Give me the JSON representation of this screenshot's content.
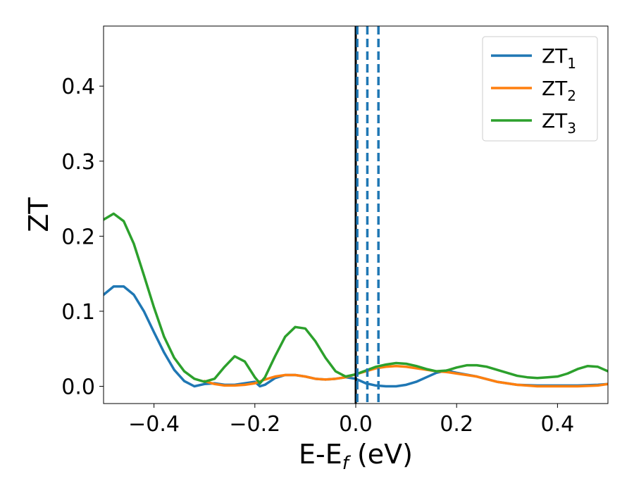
{
  "chart_data": {
    "type": "line",
    "xlabel": "E-E",
    "xlabel_sub": "f",
    "xlabel_unit": " (eV)",
    "ylabel": "ZT",
    "xlim": [
      -0.5,
      0.5
    ],
    "ylim": [
      -0.023,
      0.48
    ],
    "x_ticks": [
      -0.4,
      -0.2,
      0.0,
      0.2,
      0.4
    ],
    "x_tick_labels": [
      "−0.4",
      "−0.2",
      "0.0",
      "0.2",
      "0.4"
    ],
    "y_ticks": [
      0.0,
      0.1,
      0.2,
      0.3,
      0.4
    ],
    "y_tick_labels": [
      "0.0",
      "0.1",
      "0.2",
      "0.3",
      "0.4"
    ],
    "grid": false,
    "legend_position": "top-right",
    "vertical_lines": [
      {
        "x": 0.0,
        "color": "#000000",
        "style": "solid"
      },
      {
        "x": 0.003,
        "color": "#1f77b4",
        "style": "dashed"
      },
      {
        "x": 0.023,
        "color": "#1f77b4",
        "style": "dashed"
      },
      {
        "x": 0.045,
        "color": "#1f77b4",
        "style": "dashed"
      }
    ],
    "series": [
      {
        "name": "ZT",
        "name_sub": "1",
        "color": "#1f77b4",
        "points": [
          [
            -0.5,
            0.122
          ],
          [
            -0.48,
            0.133
          ],
          [
            -0.46,
            0.133
          ],
          [
            -0.44,
            0.122
          ],
          [
            -0.42,
            0.1
          ],
          [
            -0.4,
            0.072
          ],
          [
            -0.38,
            0.045
          ],
          [
            -0.36,
            0.022
          ],
          [
            -0.34,
            0.007
          ],
          [
            -0.32,
            0.0
          ],
          [
            -0.3,
            0.003
          ],
          [
            -0.28,
            0.004
          ],
          [
            -0.26,
            0.002
          ],
          [
            -0.24,
            0.002
          ],
          [
            -0.22,
            0.004
          ],
          [
            -0.2,
            0.006
          ],
          [
            -0.19,
            0.0
          ],
          [
            -0.18,
            0.002
          ],
          [
            -0.16,
            0.011
          ],
          [
            -0.14,
            0.015
          ],
          [
            -0.12,
            0.015
          ],
          [
            -0.1,
            0.013
          ],
          [
            -0.08,
            0.01
          ],
          [
            -0.06,
            0.009
          ],
          [
            -0.04,
            0.01
          ],
          [
            -0.02,
            0.012
          ],
          [
            0.0,
            0.01
          ],
          [
            0.02,
            0.004
          ],
          [
            0.04,
            0.001
          ],
          [
            0.06,
            0.0
          ],
          [
            0.08,
            0.0
          ],
          [
            0.1,
            0.002
          ],
          [
            0.12,
            0.006
          ],
          [
            0.14,
            0.012
          ],
          [
            0.16,
            0.018
          ],
          [
            0.18,
            0.021
          ],
          [
            0.2,
            0.018
          ],
          [
            0.24,
            0.013
          ],
          [
            0.28,
            0.006
          ],
          [
            0.32,
            0.002
          ],
          [
            0.36,
            0.001
          ],
          [
            0.4,
            0.001
          ],
          [
            0.44,
            0.001
          ],
          [
            0.48,
            0.002
          ],
          [
            0.5,
            0.003
          ]
        ]
      },
      {
        "name": "ZT",
        "name_sub": "2",
        "color": "#ff7f0e",
        "points": [
          [
            -0.3,
            0.007
          ],
          [
            -0.28,
            0.003
          ],
          [
            -0.26,
            0.001
          ],
          [
            -0.24,
            0.001
          ],
          [
            -0.22,
            0.002
          ],
          [
            -0.2,
            0.004
          ],
          [
            -0.18,
            0.009
          ],
          [
            -0.16,
            0.013
          ],
          [
            -0.14,
            0.015
          ],
          [
            -0.12,
            0.015
          ],
          [
            -0.1,
            0.013
          ],
          [
            -0.08,
            0.01
          ],
          [
            -0.06,
            0.009
          ],
          [
            -0.04,
            0.01
          ],
          [
            -0.02,
            0.012
          ],
          [
            0.0,
            0.016
          ],
          [
            0.02,
            0.02
          ],
          [
            0.04,
            0.024
          ],
          [
            0.06,
            0.026
          ],
          [
            0.08,
            0.027
          ],
          [
            0.1,
            0.026
          ],
          [
            0.12,
            0.024
          ],
          [
            0.14,
            0.022
          ],
          [
            0.16,
            0.02
          ],
          [
            0.18,
            0.019
          ],
          [
            0.2,
            0.017
          ],
          [
            0.24,
            0.013
          ],
          [
            0.28,
            0.006
          ],
          [
            0.32,
            0.002
          ],
          [
            0.36,
            0.0
          ],
          [
            0.4,
            0.0
          ],
          [
            0.44,
            0.0
          ],
          [
            0.48,
            0.001
          ],
          [
            0.5,
            0.003
          ]
        ]
      },
      {
        "name": "ZT",
        "name_sub": "3",
        "color": "#2ca02c",
        "points": [
          [
            -0.5,
            0.222
          ],
          [
            -0.48,
            0.23
          ],
          [
            -0.46,
            0.22
          ],
          [
            -0.44,
            0.19
          ],
          [
            -0.42,
            0.148
          ],
          [
            -0.4,
            0.105
          ],
          [
            -0.38,
            0.066
          ],
          [
            -0.36,
            0.038
          ],
          [
            -0.34,
            0.02
          ],
          [
            -0.32,
            0.01
          ],
          [
            -0.3,
            0.006
          ],
          [
            -0.28,
            0.01
          ],
          [
            -0.26,
            0.026
          ],
          [
            -0.24,
            0.04
          ],
          [
            -0.22,
            0.033
          ],
          [
            -0.2,
            0.012
          ],
          [
            -0.19,
            0.004
          ],
          [
            -0.18,
            0.012
          ],
          [
            -0.16,
            0.04
          ],
          [
            -0.14,
            0.066
          ],
          [
            -0.12,
            0.079
          ],
          [
            -0.1,
            0.077
          ],
          [
            -0.08,
            0.06
          ],
          [
            -0.06,
            0.038
          ],
          [
            -0.04,
            0.02
          ],
          [
            -0.02,
            0.013
          ],
          [
            0.0,
            0.016
          ],
          [
            0.02,
            0.021
          ],
          [
            0.04,
            0.026
          ],
          [
            0.06,
            0.029
          ],
          [
            0.08,
            0.031
          ],
          [
            0.1,
            0.03
          ],
          [
            0.12,
            0.027
          ],
          [
            0.14,
            0.023
          ],
          [
            0.16,
            0.02
          ],
          [
            0.18,
            0.021
          ],
          [
            0.2,
            0.025
          ],
          [
            0.22,
            0.028
          ],
          [
            0.24,
            0.028
          ],
          [
            0.26,
            0.026
          ],
          [
            0.28,
            0.022
          ],
          [
            0.3,
            0.018
          ],
          [
            0.32,
            0.014
          ],
          [
            0.34,
            0.012
          ],
          [
            0.36,
            0.011
          ],
          [
            0.38,
            0.012
          ],
          [
            0.4,
            0.013
          ],
          [
            0.42,
            0.017
          ],
          [
            0.44,
            0.023
          ],
          [
            0.46,
            0.027
          ],
          [
            0.48,
            0.026
          ],
          [
            0.5,
            0.02
          ]
        ]
      }
    ]
  }
}
